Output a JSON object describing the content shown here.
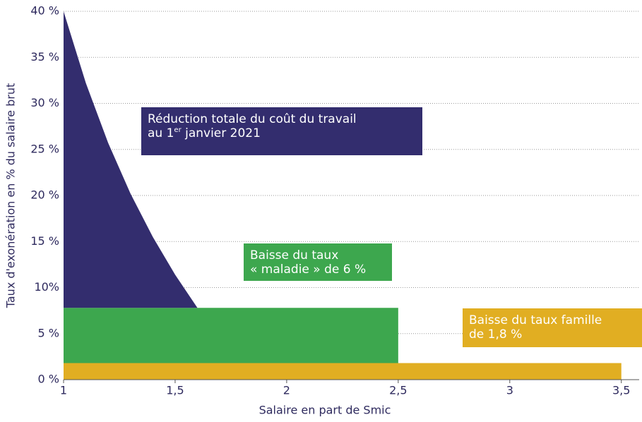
{
  "chart_data": {
    "type": "area",
    "stacked": true,
    "x_label": "Salaire en part de Smic",
    "y_label": "Taux d'exonération en % du salaire brut",
    "x": [
      1,
      1.1,
      1.2,
      1.3,
      1.4,
      1.5,
      1.6,
      2.5,
      3.5
    ],
    "series": [
      {
        "name": "Baisse du taux famille de 1,8 %",
        "color": "#e1ae22",
        "values": [
          1.8,
          1.8,
          1.8,
          1.8,
          1.8,
          1.8,
          1.8,
          1.8,
          1.8
        ]
      },
      {
        "name": "Baisse du taux « maladie » de 6 %",
        "color": "#3da74e",
        "values": [
          6,
          6,
          6,
          6,
          6,
          6,
          6,
          6,
          null
        ]
      },
      {
        "name": "Réduction totale du coût du travail au 1er janvier 2021",
        "color": "#332d6e",
        "values": [
          32.2,
          24.4,
          17.9,
          12.4,
          7.7,
          3.6,
          0,
          null,
          null
        ]
      }
    ],
    "annotations": [
      {
        "lines": [
          "Baisse du taux famille",
          "de 1,8 %"
        ]
      },
      {
        "lines": [
          "Baisse du taux",
          "« maladie » de 6 %"
        ]
      },
      {
        "lines": [
          "Réduction totale du coût du travail",
          "au 1",
          "er",
          " janvier 2021"
        ]
      }
    ],
    "xlim": [
      1,
      3.58
    ],
    "xticks": [
      1,
      {
        "value": 1.5,
        "label": "1,5"
      },
      2,
      {
        "value": 2.5,
        "label": "2,5"
      },
      3,
      {
        "value": 3.5,
        "label": "3,5"
      }
    ],
    "ylim": [
      0,
      40
    ],
    "yticks": [
      {
        "value": 0,
        "label": "0 %"
      },
      {
        "value": 5,
        "label": "5 %"
      },
      {
        "value": 10,
        "label": "10%"
      },
      {
        "value": 15,
        "label": "15 %"
      },
      {
        "value": 20,
        "label": "20 %"
      },
      {
        "value": 25,
        "label": "25 %"
      },
      {
        "value": 30,
        "label": "30 %"
      },
      {
        "value": 35,
        "label": "35 %"
      },
      {
        "value": 40,
        "label": "40 %"
      }
    ],
    "grid": true
  }
}
